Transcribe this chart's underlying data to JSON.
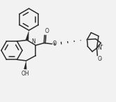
{
  "bg_color": "#f2f2f2",
  "line_color": "#2a2a2a",
  "line_width": 1.1,
  "figsize": [
    1.67,
    1.46
  ],
  "dpi": 100,
  "xlim": [
    0,
    1.0
  ],
  "ylim": [
    0,
    0.88
  ]
}
